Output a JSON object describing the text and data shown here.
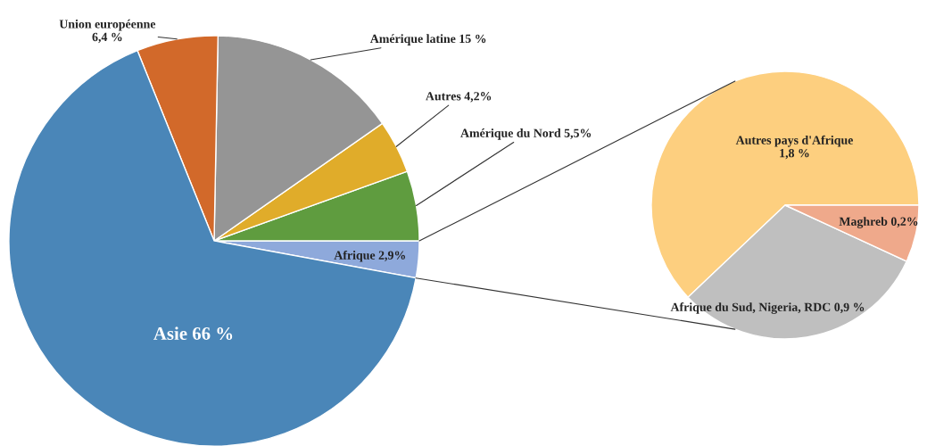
{
  "chart_data": [
    {
      "type": "pie",
      "categories": [
        "Afrique",
        "Amérique du Nord",
        "Autres",
        "Amérique latine",
        "Union européenne",
        "Asie"
      ],
      "values": [
        2.9,
        5.5,
        4.2,
        15,
        6.4,
        66
      ],
      "colors": [
        "#8ea9db",
        "#5f9c3f",
        "#e0ac2a",
        "#959595",
        "#d2692a",
        "#4a86b8"
      ],
      "value_labels": [
        "2,9%",
        "5,5%",
        "4,2%",
        "15 %",
        "6,4 %",
        "66 %"
      ]
    },
    {
      "type": "pie",
      "categories": [
        "Autres pays d'Afrique",
        "Afrique du Sud, Nigeria, RDC",
        "Maghreb"
      ],
      "values": [
        1.8,
        0.9,
        0.2
      ],
      "colors": [
        "#fdcf7f",
        "#bfbfbf",
        "#efa98b"
      ],
      "value_labels": [
        "1,8 %",
        "0,9 %",
        "0,2%"
      ]
    }
  ]
}
